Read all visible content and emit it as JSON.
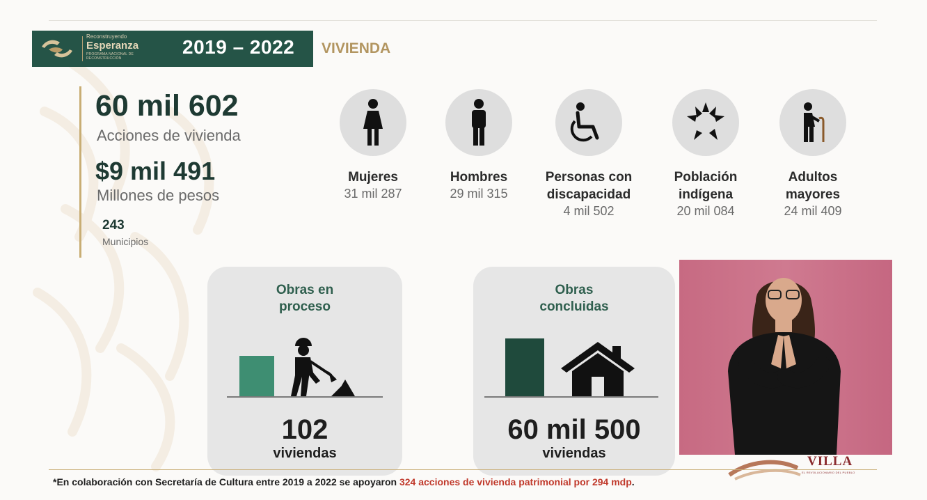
{
  "header": {
    "logo_small": "Reconstruyendo",
    "logo_big": "Esperanza",
    "logo_sub": "PROGRAMA NACIONAL DE RECONSTRUCCIÓN",
    "years": "2019 – 2022",
    "topic": "VIVIENDA"
  },
  "stats": {
    "actions_value": "60 mil 602",
    "actions_label": "Acciones de vivienda",
    "amount_value": "$9 mil 491",
    "amount_label": "Millones de pesos",
    "municipalities_value": "243",
    "municipalities_label": "Municipios"
  },
  "demographics": [
    {
      "name_line1": "Mujeres",
      "name_line2": "",
      "value": "31 mil 287",
      "icon": "woman-icon"
    },
    {
      "name_line1": "Hombres",
      "name_line2": "",
      "value": "29 mil 315",
      "icon": "man-icon"
    },
    {
      "name_line1": "Personas con",
      "name_line2": "discapacidad",
      "value": "4 mil 502",
      "icon": "wheelchair-icon"
    },
    {
      "name_line1": "Población",
      "name_line2": "indígena",
      "value": "20 mil 084",
      "icon": "hands-circle-icon"
    },
    {
      "name_line1": "Adultos",
      "name_line2": "mayores",
      "value": "24 mil 409",
      "icon": "elderly-person-icon"
    }
  ],
  "cards": {
    "in_progress": {
      "title_line1": "Obras en",
      "title_line2": "proceso",
      "value": "102",
      "unit": "viviendas",
      "icon": "construction-worker-icon"
    },
    "completed": {
      "title_line1": "Obras",
      "title_line2": "concluidas",
      "value": "60 mil 500",
      "unit": "viviendas",
      "icon": "house-icon"
    }
  },
  "footnote": {
    "prefix": "*En colaboración con Secretaría de Cultura entre 2019 a 2022 se apoyaron ",
    "highlight": "324 acciones de vivienda patrimonial por 294 mdp",
    "suffix": "."
  },
  "villa": {
    "text": "VILLA",
    "sub": "EL REVOLUCIONARIO DEL PUEBLO"
  },
  "colors": {
    "brand_green": "#255447",
    "gold": "#b29560",
    "bar_light_green": "#3e8e72",
    "bar_dark_green": "#1f4a3c",
    "highlight_red": "#c0392b",
    "video_bg": "#c96f86"
  }
}
